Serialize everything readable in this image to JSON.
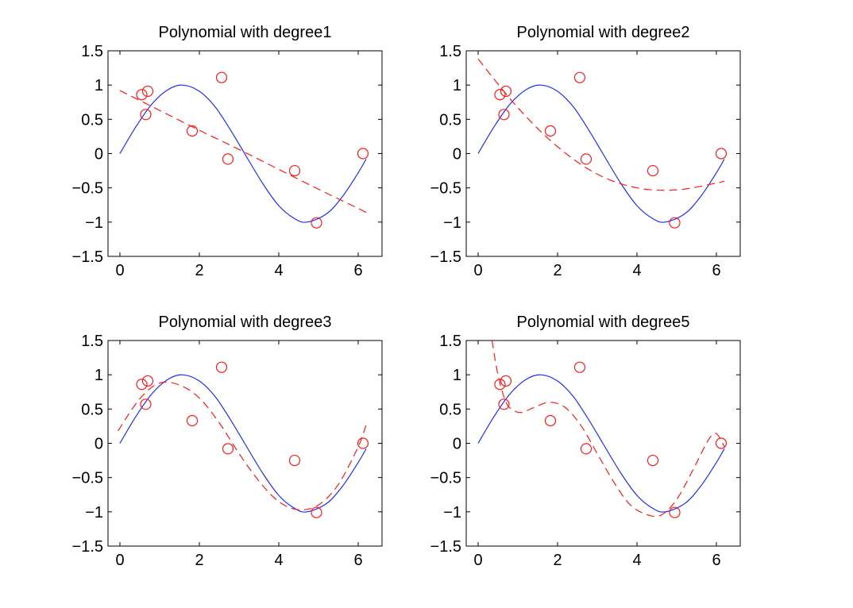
{
  "chart_data": [
    {
      "type": "line",
      "title": "Polynomial with degree1",
      "xlim": [
        -0.3,
        6.6
      ],
      "ylim": [
        -1.5,
        1.5
      ],
      "xticks": [
        0,
        2,
        4,
        6
      ],
      "yticks": [
        -1.5,
        -1,
        -0.5,
        0,
        0.5,
        1,
        1.5
      ],
      "xtick_labels": [
        "0",
        "2",
        "4",
        "6"
      ],
      "ytick_labels": [
        "−1.5",
        "−1",
        "−0.5",
        "0",
        "0.5",
        "1",
        "1.5"
      ],
      "samples": {
        "x": [
          0.55,
          0.65,
          0.7,
          1.82,
          2.56,
          2.72,
          4.4,
          4.95,
          6.12
        ],
        "y": [
          0.86,
          0.57,
          0.91,
          0.33,
          1.11,
          -0.08,
          -0.25,
          -1.01,
          0.0
        ]
      },
      "fit": {
        "x": [
          0,
          1,
          2,
          3,
          4,
          5,
          6,
          6.2
        ],
        "y": [
          0.92,
          0.63,
          0.34,
          0.06,
          -0.23,
          -0.52,
          -0.8,
          -0.86
        ]
      },
      "true_function": {
        "x": [
          0,
          0.4,
          0.8,
          1.2,
          1.57,
          2.0,
          2.4,
          2.8,
          3.14,
          3.6,
          4.0,
          4.4,
          4.71,
          5.2,
          5.6,
          6.0,
          6.2
        ],
        "y": [
          0,
          0.39,
          0.72,
          0.93,
          1.0,
          0.91,
          0.68,
          0.33,
          0,
          -0.44,
          -0.76,
          -0.95,
          -1.0,
          -0.88,
          -0.63,
          -0.28,
          -0.08
        ]
      }
    },
    {
      "type": "line",
      "title": "Polynomial with degree2",
      "xlim": [
        -0.3,
        6.6
      ],
      "ylim": [
        -1.5,
        1.5
      ],
      "xticks": [
        0,
        2,
        4,
        6
      ],
      "yticks": [
        -1.5,
        -1,
        -0.5,
        0,
        0.5,
        1,
        1.5
      ],
      "xtick_labels": [
        "0",
        "2",
        "4",
        "6"
      ],
      "ytick_labels": [
        "−1.5",
        "−1",
        "−0.5",
        "0",
        "0.5",
        "1",
        "1.5"
      ],
      "samples": {
        "x": [
          0.55,
          0.65,
          0.7,
          1.82,
          2.56,
          2.72,
          4.4,
          4.95,
          6.12
        ],
        "y": [
          0.86,
          0.57,
          0.91,
          0.33,
          1.11,
          -0.08,
          -0.25,
          -1.01,
          0.0
        ]
      },
      "fit": {
        "x": [
          0,
          1,
          2,
          3,
          4,
          5,
          6,
          6.2
        ],
        "y": [
          1.38,
          0.67,
          0.1,
          -0.3,
          -0.5,
          -0.53,
          -0.43,
          -0.4
        ]
      },
      "true_function": {
        "x": [
          0,
          0.4,
          0.8,
          1.2,
          1.57,
          2.0,
          2.4,
          2.8,
          3.14,
          3.6,
          4.0,
          4.4,
          4.71,
          5.2,
          5.6,
          6.0,
          6.2
        ],
        "y": [
          0,
          0.39,
          0.72,
          0.93,
          1.0,
          0.91,
          0.68,
          0.33,
          0,
          -0.44,
          -0.76,
          -0.95,
          -1.0,
          -0.88,
          -0.63,
          -0.28,
          -0.08
        ]
      }
    },
    {
      "type": "line",
      "title": "Polynomial with degree3",
      "xlim": [
        -0.3,
        6.6
      ],
      "ylim": [
        -1.5,
        1.5
      ],
      "xticks": [
        0,
        2,
        4,
        6
      ],
      "yticks": [
        -1.5,
        -1,
        -0.5,
        0,
        0.5,
        1,
        1.5
      ],
      "xtick_labels": [
        "0",
        "2",
        "4",
        "6"
      ],
      "ytick_labels": [
        "−1.5",
        "−1",
        "−0.5",
        "0",
        "0.5",
        "1",
        "1.5"
      ],
      "samples": {
        "x": [
          0.55,
          0.65,
          0.7,
          1.82,
          2.56,
          2.72,
          4.4,
          4.95,
          6.12
        ],
        "y": [
          0.86,
          0.57,
          0.91,
          0.33,
          1.11,
          -0.08,
          -0.25,
          -1.01,
          0.0
        ]
      },
      "fit": {
        "x": [
          -0.05,
          0.5,
          1.0,
          1.5,
          2.0,
          2.5,
          3.0,
          3.5,
          4.0,
          4.5,
          5.0,
          5.5,
          6.0,
          6.2
        ],
        "y": [
          0.18,
          0.65,
          0.88,
          0.85,
          0.66,
          0.3,
          -0.15,
          -0.55,
          -0.85,
          -0.97,
          -0.9,
          -0.6,
          -0.05,
          0.27
        ]
      },
      "true_function": {
        "x": [
          0,
          0.4,
          0.8,
          1.2,
          1.57,
          2.0,
          2.4,
          2.8,
          3.14,
          3.6,
          4.0,
          4.4,
          4.71,
          5.2,
          5.6,
          6.0,
          6.2
        ],
        "y": [
          0,
          0.39,
          0.72,
          0.93,
          1.0,
          0.91,
          0.68,
          0.33,
          0,
          -0.44,
          -0.76,
          -0.95,
          -1.0,
          -0.88,
          -0.63,
          -0.28,
          -0.08
        ]
      }
    },
    {
      "type": "line",
      "title": "Polynomial with degree5",
      "xlim": [
        -0.3,
        6.6
      ],
      "ylim": [
        -1.5,
        1.5
      ],
      "xticks": [
        0,
        2,
        4,
        6
      ],
      "yticks": [
        -1.5,
        -1,
        -0.5,
        0,
        0.5,
        1,
        1.5
      ],
      "xtick_labels": [
        "0",
        "2",
        "4",
        "6"
      ],
      "ytick_labels": [
        "−1.5",
        "−1",
        "−0.5",
        "0",
        "0.5",
        "1",
        "1.5"
      ],
      "samples": {
        "x": [
          0.55,
          0.65,
          0.7,
          1.82,
          2.56,
          2.72,
          4.4,
          4.95,
          6.12
        ],
        "y": [
          0.86,
          0.57,
          0.91,
          0.33,
          1.11,
          -0.08,
          -0.25,
          -1.01,
          0.0
        ]
      },
      "fit": {
        "x": [
          0.35,
          0.5,
          0.7,
          0.9,
          1.1,
          1.4,
          1.8,
          2.2,
          2.6,
          3.0,
          3.4,
          3.8,
          4.2,
          4.6,
          5.0,
          5.4,
          5.8,
          6.0,
          6.2
        ],
        "y": [
          1.5,
          1.0,
          0.6,
          0.48,
          0.45,
          0.52,
          0.6,
          0.52,
          0.25,
          -0.15,
          -0.55,
          -0.88,
          -1.03,
          -1.05,
          -0.82,
          -0.4,
          0.05,
          0.14,
          -0.05
        ]
      },
      "true_function": {
        "x": [
          0,
          0.4,
          0.8,
          1.2,
          1.57,
          2.0,
          2.4,
          2.8,
          3.14,
          3.6,
          4.0,
          4.4,
          4.71,
          5.2,
          5.6,
          6.0,
          6.2
        ],
        "y": [
          0,
          0.39,
          0.72,
          0.93,
          1.0,
          0.91,
          0.68,
          0.33,
          0,
          -0.44,
          -0.76,
          -0.95,
          -1.0,
          -0.88,
          -0.63,
          -0.28,
          -0.08
        ]
      }
    }
  ],
  "colors": {
    "true_function": "#1f2dff",
    "fit": "#ff1a1a",
    "samples": "#ff1a1a"
  }
}
